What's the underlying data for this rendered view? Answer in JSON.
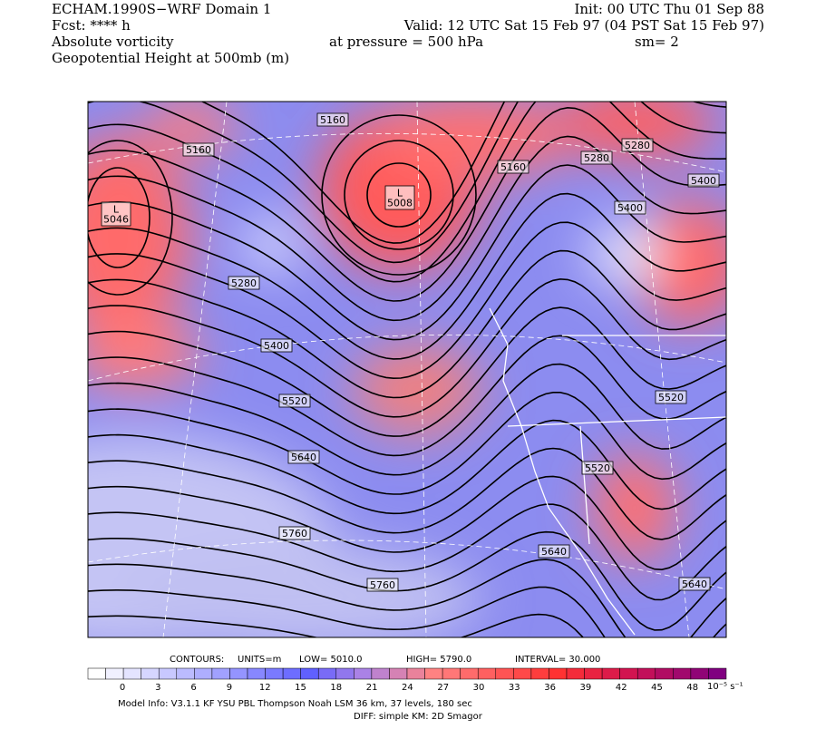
{
  "header": {
    "left": [
      "ECHAM.1990S−WRF Domain 1",
      "Fcst: **** h",
      "Absolute vorticity",
      "Geopotential Height at 500mb (m)"
    ],
    "init": "Init: 00 UTC Thu 01 Sep 88",
    "valid": "Valid: 12 UTC Sat 15 Feb 97 (04 PST Sat 15 Feb 97)",
    "pressure": "at pressure =  500 hPa",
    "smooth": "sm= 2"
  },
  "map": {
    "lows": [
      {
        "mark": "L",
        "value": "5046"
      },
      {
        "mark": "L",
        "value": "5008"
      }
    ],
    "contour_labels": [
      "5160",
      "5160",
      "5160",
      "5280",
      "5280",
      "5400",
      "5400",
      "5280",
      "5400",
      "5520",
      "5640",
      "5760",
      "5760",
      "5520",
      "5520",
      "5640",
      "5640"
    ]
  },
  "contours": {
    "title": "CONTOURS:",
    "units": "UNITS=m",
    "low": "LOW=   5010.0",
    "high": "HIGH=  5790.0",
    "interval": "INTERVAL=   30.000"
  },
  "colorbar": {
    "labels": [
      0,
      3,
      6,
      9,
      12,
      15,
      18,
      21,
      24,
      27,
      30,
      33,
      36,
      39,
      42,
      45,
      48
    ],
    "unit": "10⁻⁵ s⁻¹"
  },
  "footer": [
    "Model Info: V3.1.1    KF      YSU PBL   Thompson     Noah LSM   36 km,    37 levels,   180 sec",
    "DIFF: simple KM: 2D Smagor"
  ]
}
